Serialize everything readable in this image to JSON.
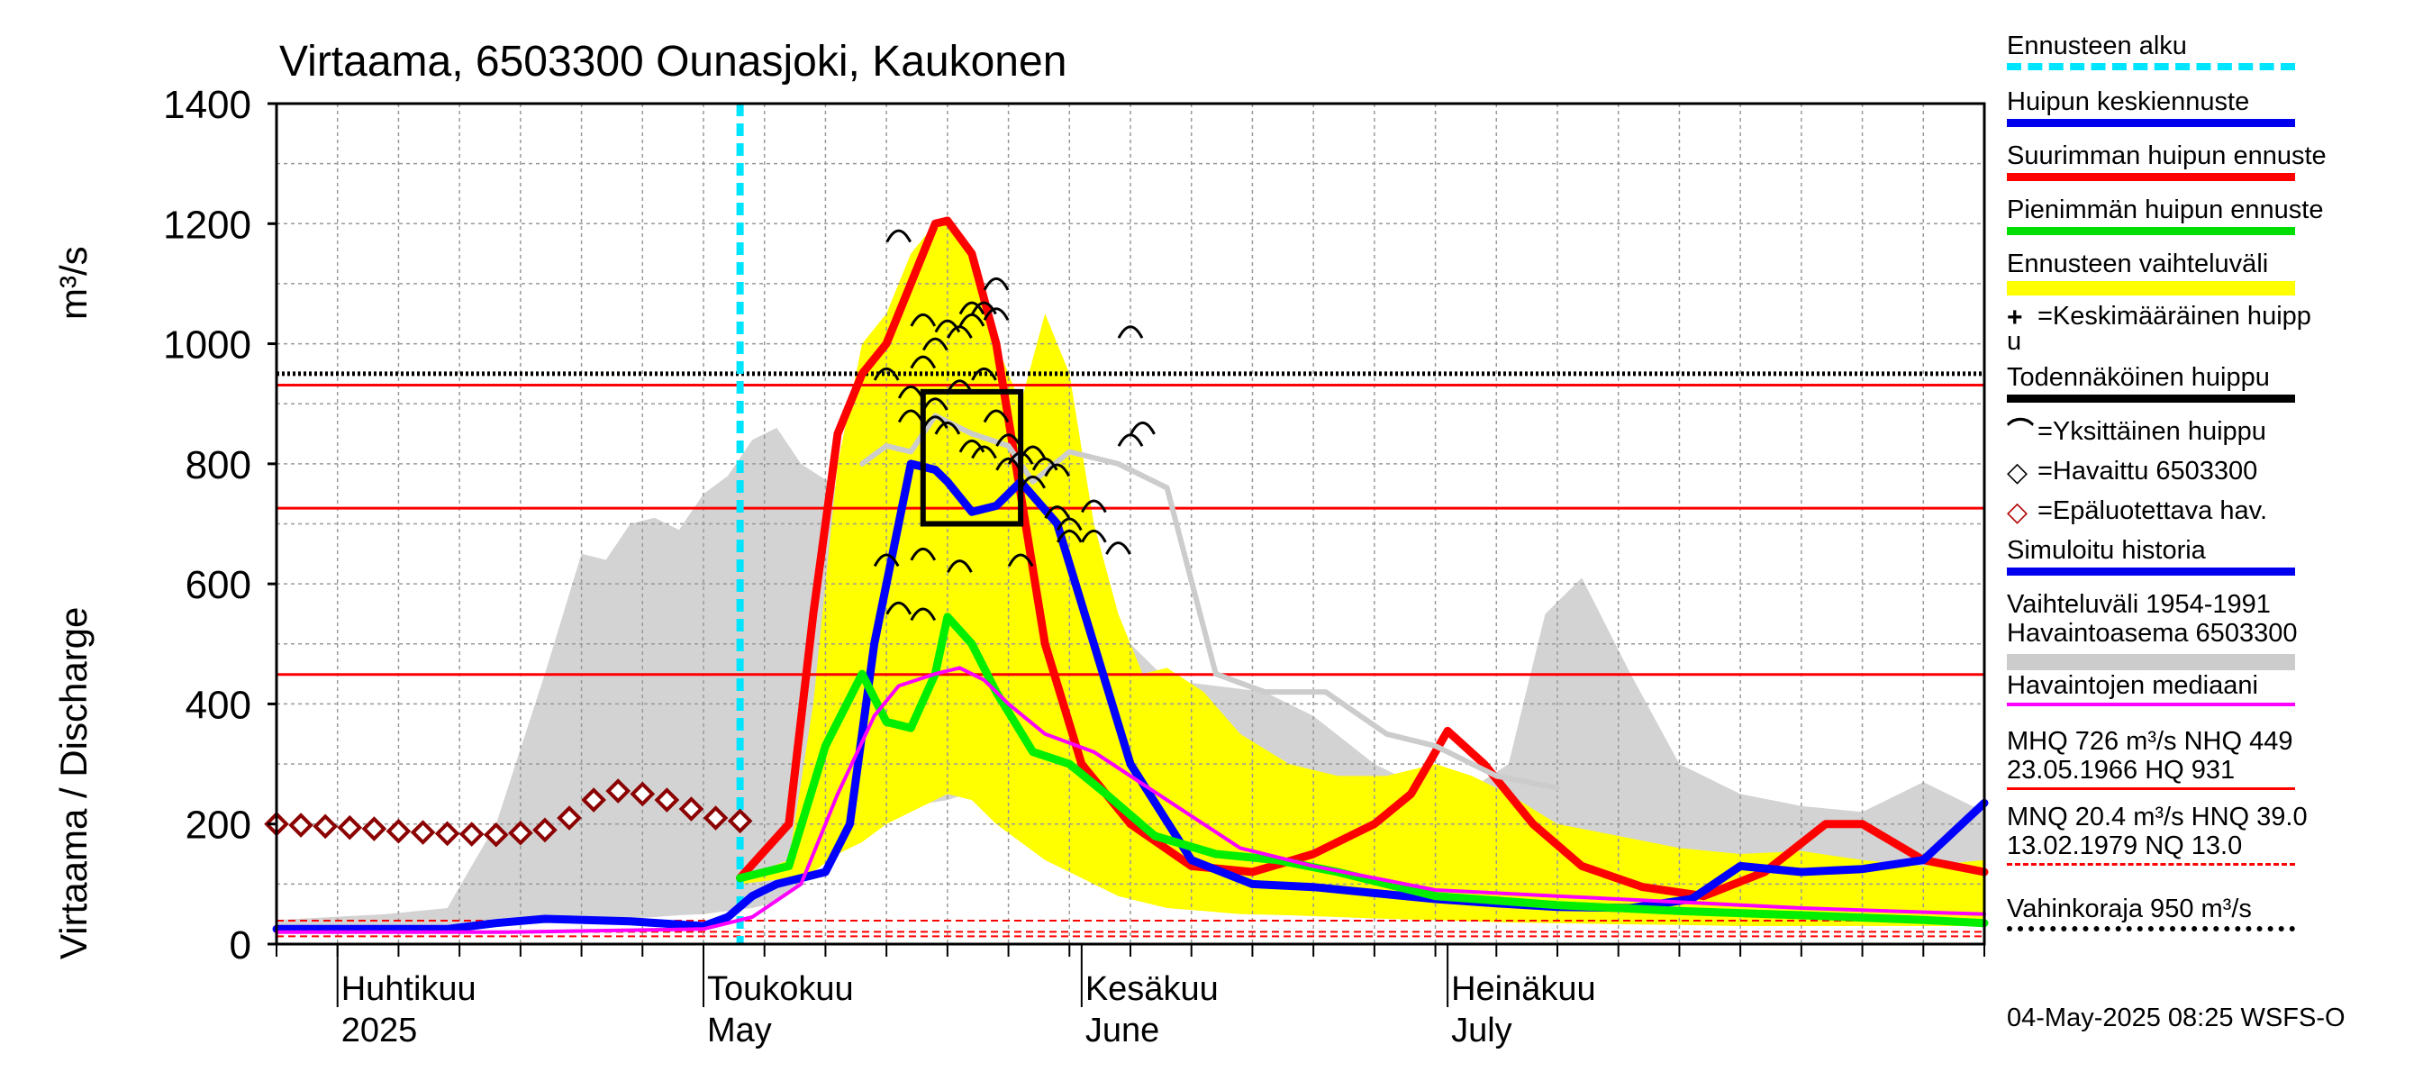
{
  "chart_data": {
    "type": "line",
    "title": "Virtaama, 6503300 Ounasjoki, Kaukonen",
    "ylabel_fi": "Virtaama / Discharge",
    "ylabel_unit": "m³/s",
    "ylim": [
      0,
      1400
    ],
    "yticks": [
      "0",
      "200",
      "400",
      "600",
      "800",
      "1000",
      "1200",
      "1400"
    ],
    "grid": true,
    "x_start": "2025-03-27",
    "x_end": "2025-08-14",
    "month_labels": [
      {
        "fi": "Huhtikuu",
        "en": "2025",
        "date": "2025-04-01"
      },
      {
        "fi": "Toukokuu",
        "en": "May",
        "date": "2025-05-01"
      },
      {
        "fi": "Kesäkuu",
        "en": "June",
        "date": "2025-06-01"
      },
      {
        "fi": "Heinäkuu",
        "en": "July",
        "date": "2025-07-01"
      }
    ],
    "forecast_start": "2025-05-04",
    "hlines": [
      {
        "name": "HQ",
        "value": 931,
        "color": "#ff0000",
        "style": "solid"
      },
      {
        "name": "MHQ",
        "value": 726,
        "color": "#ff0000",
        "style": "solid"
      },
      {
        "name": "NHQ",
        "value": 449,
        "color": "#ff0000",
        "style": "solid"
      },
      {
        "name": "Vahinkoraja",
        "value": 950,
        "color": "#000000",
        "style": "dotted"
      },
      {
        "name": "HNQ",
        "value": 39,
        "color": "#ff0000",
        "style": "dashed"
      },
      {
        "name": "MNQ",
        "value": 20.4,
        "color": "#ff0000",
        "style": "dashed"
      },
      {
        "name": "NQ",
        "value": 13,
        "color": "#ff0000",
        "style": "dashed"
      }
    ],
    "grey_band": {
      "dates": [
        "2025-03-27",
        "2025-04-05",
        "2025-04-10",
        "2025-04-14",
        "2025-04-18",
        "2025-04-21",
        "2025-04-23",
        "2025-04-25",
        "2025-04-27",
        "2025-04-29",
        "2025-05-01",
        "2025-05-03",
        "2025-05-05",
        "2025-05-07",
        "2025-05-09",
        "2025-05-12",
        "2025-05-15",
        "2025-05-18",
        "2025-05-21",
        "2025-05-24",
        "2025-05-27",
        "2025-05-30",
        "2025-06-02",
        "2025-06-05",
        "2025-06-08",
        "2025-06-12",
        "2025-06-16",
        "2025-06-20",
        "2025-06-25",
        "2025-06-30",
        "2025-07-03",
        "2025-07-06",
        "2025-07-09",
        "2025-07-12",
        "2025-07-16",
        "2025-07-20",
        "2025-07-25",
        "2025-07-30",
        "2025-08-04",
        "2025-08-09",
        "2025-08-14"
      ],
      "upper": [
        40,
        50,
        60,
        200,
        450,
        650,
        640,
        700,
        710,
        690,
        750,
        780,
        840,
        860,
        800,
        760,
        780,
        820,
        850,
        860,
        830,
        700,
        620,
        500,
        440,
        430,
        420,
        380,
        300,
        250,
        260,
        300,
        550,
        610,
        450,
        300,
        250,
        230,
        220,
        270,
        220
      ],
      "lower": [
        20,
        22,
        25,
        30,
        35,
        38,
        40,
        42,
        45,
        48,
        50,
        55,
        60,
        70,
        100,
        200,
        220,
        230,
        240,
        260,
        270,
        240,
        200,
        150,
        120,
        100,
        90,
        80,
        75,
        72,
        70,
        68,
        65,
        62,
        60,
        58,
        55,
        52,
        50,
        48,
        45
      ]
    },
    "yellow_band": {
      "dates": [
        "2025-05-04",
        "2025-05-08",
        "2025-05-10",
        "2025-05-12",
        "2025-05-14",
        "2025-05-16",
        "2025-05-18",
        "2025-05-20",
        "2025-05-21",
        "2025-05-23",
        "2025-05-25",
        "2025-05-27",
        "2025-05-29",
        "2025-05-31",
        "2025-06-02",
        "2025-06-04",
        "2025-06-06",
        "2025-06-08",
        "2025-06-11",
        "2025-06-14",
        "2025-06-18",
        "2025-06-22",
        "2025-06-26",
        "2025-06-30",
        "2025-07-03",
        "2025-07-06",
        "2025-07-10",
        "2025-07-15",
        "2025-07-20",
        "2025-07-25",
        "2025-07-30",
        "2025-08-04",
        "2025-08-09",
        "2025-08-14"
      ],
      "upper": [
        110,
        140,
        400,
        800,
        1000,
        1050,
        1150,
        1200,
        1210,
        1150,
        1000,
        900,
        1050,
        950,
        700,
        550,
        450,
        460,
        420,
        350,
        300,
        280,
        280,
        300,
        280,
        250,
        200,
        180,
        160,
        150,
        155,
        140,
        130,
        140
      ],
      "lower": [
        100,
        110,
        120,
        150,
        170,
        200,
        220,
        240,
        250,
        240,
        200,
        170,
        140,
        120,
        100,
        80,
        70,
        60,
        55,
        50,
        48,
        45,
        42,
        40,
        38,
        36,
        35,
        33,
        32,
        30,
        30,
        30,
        30,
        30
      ]
    },
    "series": [
      {
        "name": "Suurimman huipun ennuste",
        "color": "#ff0000",
        "width": 9,
        "dates": [
          "2025-05-04",
          "2025-05-08",
          "2025-05-10",
          "2025-05-12",
          "2025-05-14",
          "2025-05-16",
          "2025-05-18",
          "2025-05-20",
          "2025-05-21",
          "2025-05-23",
          "2025-05-25",
          "2025-05-27",
          "2025-05-29",
          "2025-06-01",
          "2025-06-05",
          "2025-06-10",
          "2025-06-15",
          "2025-06-20",
          "2025-06-25",
          "2025-06-28",
          "2025-07-01",
          "2025-07-04",
          "2025-07-08",
          "2025-07-12",
          "2025-07-17",
          "2025-07-22",
          "2025-07-27",
          "2025-08-01",
          "2025-08-04",
          "2025-08-09",
          "2025-08-14"
        ],
        "values": [
          110,
          200,
          550,
          850,
          950,
          1000,
          1100,
          1200,
          1205,
          1150,
          1000,
          750,
          500,
          300,
          200,
          130,
          120,
          150,
          200,
          250,
          355,
          300,
          200,
          130,
          95,
          80,
          120,
          200,
          200,
          140,
          120
        ]
      },
      {
        "name": "Huipun keskiennuste",
        "color": "#0000ff",
        "width": 9,
        "dates": [
          "2025-03-27",
          "2025-04-10",
          "2025-04-14",
          "2025-04-18",
          "2025-04-25",
          "2025-05-01",
          "2025-05-03",
          "2025-05-05",
          "2025-05-07",
          "2025-05-09",
          "2025-05-11",
          "2025-05-13",
          "2025-05-15",
          "2025-05-18",
          "2025-05-20",
          "2025-05-21",
          "2025-05-23",
          "2025-05-25",
          "2025-05-27",
          "2025-05-30",
          "2025-06-02",
          "2025-06-05",
          "2025-06-10",
          "2025-06-15",
          "2025-06-20",
          "2025-06-25",
          "2025-06-30",
          "2025-07-05",
          "2025-07-10",
          "2025-07-16",
          "2025-07-21",
          "2025-07-25",
          "2025-07-30",
          "2025-08-04",
          "2025-08-09",
          "2025-08-14"
        ],
        "values": [
          25,
          25,
          35,
          42,
          38,
          30,
          45,
          80,
          100,
          110,
          120,
          200,
          500,
          800,
          790,
          770,
          720,
          730,
          770,
          700,
          500,
          300,
          140,
          100,
          95,
          85,
          75,
          68,
          62,
          60,
          75,
          130,
          120,
          125,
          140,
          235
        ]
      },
      {
        "name": "Pienimmän huipun ennuste",
        "color": "#00ee00",
        "width": 9,
        "dates": [
          "2025-05-04",
          "2025-05-08",
          "2025-05-11",
          "2025-05-14",
          "2025-05-16",
          "2025-05-18",
          "2025-05-20",
          "2025-05-21",
          "2025-05-23",
          "2025-05-25",
          "2025-05-28",
          "2025-05-31",
          "2025-06-03",
          "2025-06-07",
          "2025-06-12",
          "2025-06-17",
          "2025-06-22",
          "2025-06-30",
          "2025-07-10",
          "2025-07-20",
          "2025-07-30",
          "2025-08-09",
          "2025-08-14"
        ],
        "values": [
          110,
          130,
          330,
          450,
          370,
          360,
          450,
          545,
          500,
          420,
          320,
          300,
          250,
          180,
          150,
          140,
          120,
          80,
          65,
          55,
          48,
          40,
          35
        ]
      },
      {
        "name": "Todennäköinen huippu",
        "color": "#cccccc",
        "width": 6,
        "dates": [
          "2025-05-14",
          "2025-05-16",
          "2025-05-18",
          "2025-05-20",
          "2025-05-23",
          "2025-05-26",
          "2025-05-28",
          "2025-05-31",
          "2025-06-04",
          "2025-06-08",
          "2025-06-12",
          "2025-06-16",
          "2025-06-21",
          "2025-06-26",
          "2025-06-30",
          "2025-07-05",
          "2025-07-10"
        ],
        "values": [
          800,
          830,
          820,
          880,
          850,
          830,
          770,
          820,
          800,
          760,
          450,
          420,
          420,
          350,
          330,
          280,
          260
        ]
      },
      {
        "name": "Havaintojen mediaani",
        "color": "#ff00ff",
        "width": 4,
        "dates": [
          "2025-03-27",
          "2025-04-15",
          "2025-05-01",
          "2025-05-05",
          "2025-05-09",
          "2025-05-12",
          "2025-05-15",
          "2025-05-17",
          "2025-05-20",
          "2025-05-22",
          "2025-05-24",
          "2025-05-26",
          "2025-05-29",
          "2025-06-02",
          "2025-06-08",
          "2025-06-14",
          "2025-06-20",
          "2025-06-30",
          "2025-07-10",
          "2025-07-20",
          "2025-07-30",
          "2025-08-06",
          "2025-08-14"
        ],
        "values": [
          20,
          20,
          25,
          45,
          100,
          250,
          380,
          430,
          450,
          460,
          440,
          400,
          350,
          320,
          240,
          160,
          130,
          90,
          80,
          70,
          60,
          55,
          50
        ]
      }
    ],
    "observed_unreliable": {
      "name": "Epäluotettava hav.",
      "color": "#8b0000",
      "dates": [
        "2025-03-27",
        "2025-03-29",
        "2025-03-31",
        "2025-04-02",
        "2025-04-04",
        "2025-04-06",
        "2025-04-08",
        "2025-04-10",
        "2025-04-12",
        "2025-04-14",
        "2025-04-16",
        "2025-04-18",
        "2025-04-20",
        "2025-04-22",
        "2025-04-24",
        "2025-04-26",
        "2025-04-28",
        "2025-04-30",
        "2025-05-02",
        "2025-05-04"
      ],
      "values": [
        200,
        198,
        196,
        194,
        192,
        188,
        186,
        184,
        183,
        182,
        185,
        190,
        210,
        240,
        255,
        250,
        240,
        225,
        210,
        205
      ]
    },
    "individual_peaks": {
      "dates": [
        "2025-05-17",
        "2025-05-19",
        "2025-05-21",
        "2025-05-23",
        "2025-05-25",
        "2025-05-19",
        "2025-05-20",
        "2025-05-22",
        "2025-05-23",
        "2025-05-24",
        "2025-05-25",
        "2025-05-16",
        "2025-05-18",
        "2025-05-20",
        "2025-05-22",
        "2025-05-24",
        "2025-05-25",
        "2025-05-26",
        "2025-05-27",
        "2025-05-28",
        "2025-05-29",
        "2025-05-30",
        "2025-05-18",
        "2025-05-20",
        "2025-05-21",
        "2025-05-23",
        "2025-05-24",
        "2025-05-26",
        "2025-05-28",
        "2025-05-30",
        "2025-05-31",
        "2025-06-02",
        "2025-06-04",
        "2025-06-05",
        "2025-06-06",
        "2025-05-16",
        "2025-05-19",
        "2025-05-22",
        "2025-05-27",
        "2025-05-31",
        "2025-06-05",
        "2025-06-02",
        "2025-05-17",
        "2025-05-19"
      ],
      "values": [
        1180,
        1040,
        1030,
        1060,
        1100,
        970,
        1000,
        1020,
        1040,
        1060,
        1050,
        950,
        920,
        900,
        930,
        950,
        880,
        840,
        810,
        820,
        800,
        790,
        880,
        870,
        860,
        830,
        820,
        800,
        770,
        720,
        700,
        680,
        660,
        840,
        860,
        640,
        650,
        630,
        640,
        680,
        1020,
        730,
        560,
        550
      ]
    },
    "mean_peak": {
      "date_from": "2025-05-19",
      "date_to": "2025-05-27",
      "value_low": 700,
      "value_high": 920
    },
    "legend": {
      "items": [
        "Ennusteen alku",
        "Huipun keskiennuste",
        "Suurimman huipun ennuste",
        "Pienimmän huipun ennuste",
        "Ennusteen vaihteluväli",
        "=Keskimääräinen huipp",
        "u",
        "Todennäköinen huippu",
        "=Yksittäinen huippu",
        "=Havaittu 6503300",
        "=Epäluotettava hav.",
        "Simuloitu historia",
        "Vaihteluväli 1954-1991",
        " Havaintoasema 6503300",
        "Havaintojen mediaani",
        "MHQ  726 m³/s NHQ  449",
        "23.05.1966 HQ  931",
        "MNQ 20.4 m³/s HNQ 39.0",
        "13.02.1979 NQ 13.0",
        "Vahinkoraja 950 m³/s"
      ],
      "colors": {
        "forecast_start": "#00e5ff",
        "mean_forecast": "#0000ee",
        "max_forecast": "#ff0000",
        "min_forecast": "#00dd00",
        "range": "#ffff00",
        "probable": "#000000",
        "sim_history": "#0000ee",
        "median": "#ff00ff",
        "range_hist": "#cccccc"
      }
    },
    "timestamp": "04-May-2025 08:25 WSFS-O"
  }
}
